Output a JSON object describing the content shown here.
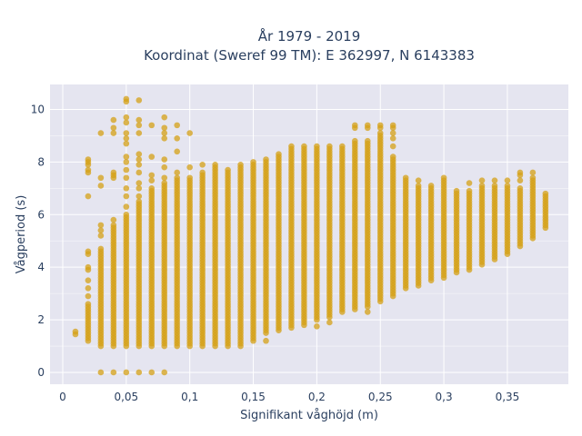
{
  "chart_data": {
    "type": "scatter",
    "title_line1": "År 1979 - 2019",
    "title_line2": "Koordinat (Sweref 99 TM): E 362997, N 6143383",
    "xlabel": "Signifikant våghöjd (m)",
    "ylabel": "Vågperiod (s)",
    "xlim": [
      -0.01,
      0.398
    ],
    "ylim": [
      -0.45,
      10.95
    ],
    "x_ticks": [
      0,
      0.05,
      0.1,
      0.15,
      0.2,
      0.25,
      0.3,
      0.35
    ],
    "x_tick_labels": [
      "0",
      "0,05",
      "0,1",
      "0,15",
      "0,2",
      "0,25",
      "0,3",
      "0,35"
    ],
    "y_ticks": [
      0,
      2,
      4,
      6,
      8,
      10
    ],
    "y_tick_labels": [
      "0",
      "2",
      "4",
      "6",
      "8",
      "10"
    ],
    "grid": true,
    "marker_color": "#D4A017",
    "background_color": "#E5E5F0",
    "columns": [
      {
        "x": 0.01,
        "ymin": 1.45,
        "ymax": 1.6
      },
      {
        "x": 0.02,
        "ymin": 1.2,
        "ymax": 2.6,
        "extra": [
          2.9,
          3.2,
          3.5,
          3.9,
          4.0,
          4.5,
          4.6,
          6.7,
          7.6,
          7.7,
          7.9,
          8.0,
          8.1
        ]
      },
      {
        "x": 0.03,
        "ymin": 1.0,
        "ymax": 4.7,
        "extra": [
          0,
          5.2,
          5.4,
          5.6,
          7.1,
          7.4,
          9.1
        ]
      },
      {
        "x": 0.04,
        "ymin": 1.0,
        "ymax": 5.6,
        "extra": [
          0,
          5.8,
          7.4,
          7.5,
          7.6,
          9.1,
          9.3,
          9.6
        ]
      },
      {
        "x": 0.05,
        "ymin": 1.0,
        "ymax": 6.0,
        "extra": [
          0,
          6.3,
          6.7,
          7.0,
          7.4,
          7.7,
          8.0,
          8.2,
          8.7,
          8.9,
          9.1,
          9.5,
          9.7,
          10.3,
          10.4
        ]
      },
      {
        "x": 0.06,
        "ymin": 1.0,
        "ymax": 6.5,
        "extra": [
          0,
          6.7,
          7.0,
          7.2,
          7.6,
          7.9,
          8.1,
          8.3,
          9.1,
          9.4,
          9.6,
          10.35
        ]
      },
      {
        "x": 0.07,
        "ymin": 1.0,
        "ymax": 7.0,
        "extra": [
          0,
          7.3,
          7.5,
          8.2,
          9.4
        ]
      },
      {
        "x": 0.08,
        "ymin": 1.0,
        "ymax": 7.2,
        "extra": [
          0,
          7.4,
          7.8,
          8.1,
          8.9,
          9.1,
          9.3,
          9.7
        ]
      },
      {
        "x": 0.09,
        "ymin": 1.0,
        "ymax": 7.4,
        "extra": [
          7.6,
          8.4,
          8.9,
          9.4
        ]
      },
      {
        "x": 0.1,
        "ymin": 1.0,
        "ymax": 7.4,
        "extra": [
          7.8,
          9.1
        ]
      },
      {
        "x": 0.11,
        "ymin": 1.0,
        "ymax": 7.6,
        "extra": [
          7.9
        ]
      },
      {
        "x": 0.12,
        "ymin": 1.0,
        "ymax": 7.9
      },
      {
        "x": 0.13,
        "ymin": 1.0,
        "ymax": 7.7
      },
      {
        "x": 0.14,
        "ymin": 1.0,
        "ymax": 7.9
      },
      {
        "x": 0.15,
        "ymin": 1.2,
        "ymax": 8.0
      },
      {
        "x": 0.16,
        "ymin": 1.5,
        "ymax": 8.1,
        "extra": [
          1.2
        ]
      },
      {
        "x": 0.17,
        "ymin": 1.6,
        "ymax": 8.3
      },
      {
        "x": 0.18,
        "ymin": 1.7,
        "ymax": 8.6
      },
      {
        "x": 0.19,
        "ymin": 1.8,
        "ymax": 8.6
      },
      {
        "x": 0.2,
        "ymin": 2.0,
        "ymax": 8.6,
        "extra": [
          1.75
        ]
      },
      {
        "x": 0.21,
        "ymin": 2.1,
        "ymax": 8.6,
        "extra": [
          1.9
        ]
      },
      {
        "x": 0.22,
        "ymin": 2.3,
        "ymax": 8.6
      },
      {
        "x": 0.23,
        "ymin": 2.4,
        "ymax": 8.7,
        "extra": [
          8.8,
          9.3,
          9.4
        ]
      },
      {
        "x": 0.24,
        "ymin": 2.5,
        "ymax": 8.8,
        "extra": [
          2.3,
          9.3,
          9.4
        ]
      },
      {
        "x": 0.25,
        "ymin": 2.7,
        "ymax": 9.0,
        "extra": [
          9.1,
          9.3,
          9.4
        ]
      },
      {
        "x": 0.26,
        "ymin": 2.9,
        "ymax": 8.2,
        "extra": [
          8.6,
          8.9,
          9.1,
          9.3,
          9.4
        ]
      },
      {
        "x": 0.27,
        "ymin": 3.2,
        "ymax": 7.4
      },
      {
        "x": 0.28,
        "ymin": 3.3,
        "ymax": 7.1,
        "extra": [
          7.3
        ]
      },
      {
        "x": 0.29,
        "ymin": 3.5,
        "ymax": 7.1
      },
      {
        "x": 0.3,
        "ymin": 3.6,
        "ymax": 7.2,
        "extra": [
          7.3,
          7.4
        ]
      },
      {
        "x": 0.31,
        "ymin": 3.8,
        "ymax": 6.9
      },
      {
        "x": 0.32,
        "ymin": 3.9,
        "ymax": 6.9,
        "extra": [
          7.2
        ]
      },
      {
        "x": 0.33,
        "ymin": 4.1,
        "ymax": 7.1,
        "extra": [
          7.3
        ]
      },
      {
        "x": 0.34,
        "ymin": 4.3,
        "ymax": 7.1,
        "extra": [
          7.3
        ]
      },
      {
        "x": 0.35,
        "ymin": 4.5,
        "ymax": 7.1,
        "extra": [
          7.3
        ]
      },
      {
        "x": 0.36,
        "ymin": 4.8,
        "ymax": 7.0,
        "extra": [
          7.3,
          7.5,
          7.6
        ]
      },
      {
        "x": 0.37,
        "ymin": 5.1,
        "ymax": 7.4,
        "extra": [
          7.6
        ]
      },
      {
        "x": 0.38,
        "ymin": 5.5,
        "ymax": 6.8
      }
    ]
  }
}
